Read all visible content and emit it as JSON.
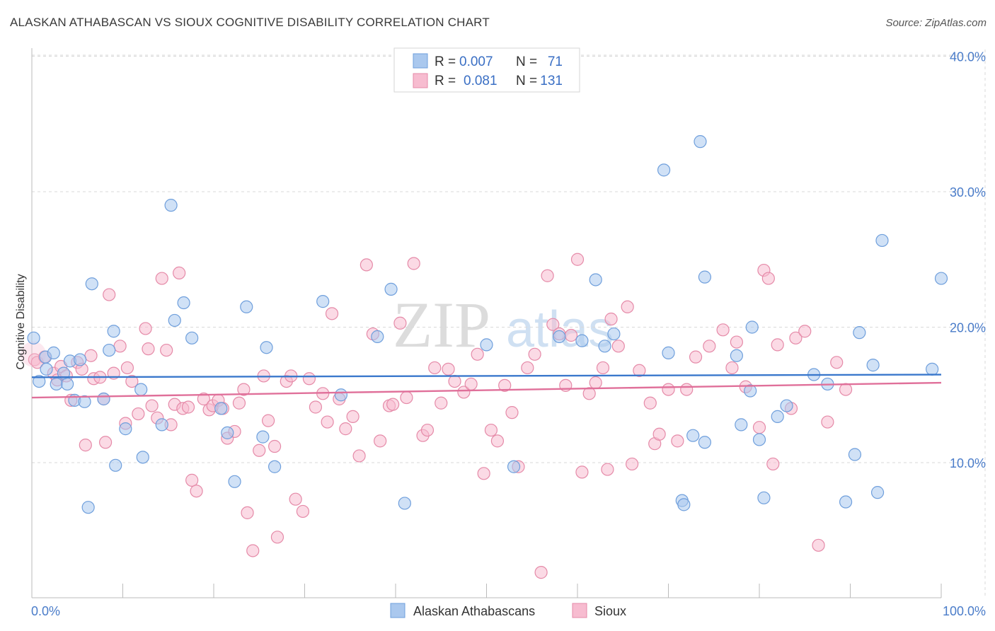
{
  "header": {
    "title": "ALASKAN ATHABASCAN VS SIOUX COGNITIVE DISABILITY CORRELATION CHART",
    "source": "Source: ZipAtlas.com"
  },
  "watermark": {
    "left": "ZIP",
    "right": "atlas"
  },
  "colors": {
    "blue_fill": "#aac8ee",
    "blue_stroke": "#6f9fdc",
    "blue_line": "#3a78cc",
    "pink_fill": "#f7bcd0",
    "pink_stroke": "#e58aa8",
    "pink_line": "#e0709a",
    "grid": "#d9d9d9",
    "axis_text": "#4a7cc9"
  },
  "legend_top": {
    "rows": [
      {
        "r_label": "R =",
        "r_value": "0.007",
        "n_label": "N =",
        "n_value": "71"
      },
      {
        "r_label": "R =",
        "r_value": "0.081",
        "n_label": "N =",
        "n_value": "131"
      }
    ]
  },
  "legend_bottom": {
    "items": [
      "Alaskan Athabascans",
      "Sioux"
    ]
  },
  "chart_data": {
    "type": "scatter",
    "title": "ALASKAN ATHABASCAN VS SIOUX COGNITIVE DISABILITY CORRELATION CHART",
    "xlabel": "",
    "ylabel": "Cognitive Disability",
    "xlim": [
      0,
      100
    ],
    "ylim": [
      0,
      42
    ],
    "x_tick_labels": [
      "0.0%",
      "100.0%"
    ],
    "y_ticks": [
      10,
      20,
      30,
      40
    ],
    "y_tick_labels": [
      "10.0%",
      "20.0%",
      "30.0%",
      "40.0%"
    ],
    "grid": true,
    "series": [
      {
        "name": "Alaskan Athabascans",
        "R": 0.007,
        "N": 71,
        "trend": {
          "y_at_0": 16.3,
          "y_at_100": 16.5
        },
        "points": [
          [
            0.2,
            19.2
          ],
          [
            0.8,
            16.0
          ],
          [
            1.5,
            17.8
          ],
          [
            1.6,
            16.9
          ],
          [
            2.4,
            18.1
          ],
          [
            2.7,
            15.8
          ],
          [
            3.5,
            16.6
          ],
          [
            3.9,
            15.8
          ],
          [
            4.2,
            17.5
          ],
          [
            4.7,
            14.6
          ],
          [
            5.3,
            17.6
          ],
          [
            5.8,
            14.5
          ],
          [
            6.2,
            6.7
          ],
          [
            6.6,
            23.2
          ],
          [
            7.9,
            14.7
          ],
          [
            8.5,
            18.3
          ],
          [
            9.0,
            19.7
          ],
          [
            9.2,
            9.8
          ],
          [
            10.3,
            12.5
          ],
          [
            12.0,
            15.4
          ],
          [
            12.2,
            10.4
          ],
          [
            14.3,
            12.8
          ],
          [
            15.3,
            29.0
          ],
          [
            15.7,
            20.5
          ],
          [
            16.7,
            21.8
          ],
          [
            17.6,
            19.2
          ],
          [
            20.8,
            14.0
          ],
          [
            21.5,
            12.2
          ],
          [
            22.3,
            8.6
          ],
          [
            23.6,
            21.5
          ],
          [
            25.4,
            11.9
          ],
          [
            25.8,
            18.5
          ],
          [
            26.7,
            9.7
          ],
          [
            32.0,
            21.9
          ],
          [
            34.0,
            15.0
          ],
          [
            38.0,
            19.3
          ],
          [
            39.5,
            22.8
          ],
          [
            41.0,
            7.0
          ],
          [
            50.0,
            18.7
          ],
          [
            53.0,
            9.7
          ],
          [
            58.0,
            19.3
          ],
          [
            60.5,
            19.0
          ],
          [
            62.0,
            23.5
          ],
          [
            63.0,
            18.6
          ],
          [
            64.0,
            19.5
          ],
          [
            69.5,
            31.6
          ],
          [
            70.0,
            18.1
          ],
          [
            71.5,
            7.2
          ],
          [
            71.7,
            6.9
          ],
          [
            72.7,
            12.0
          ],
          [
            73.5,
            33.7
          ],
          [
            74.0,
            23.7
          ],
          [
            74.0,
            11.5
          ],
          [
            77.5,
            17.9
          ],
          [
            78.0,
            12.8
          ],
          [
            79.0,
            15.3
          ],
          [
            79.2,
            20.0
          ],
          [
            80.0,
            11.7
          ],
          [
            80.5,
            7.4
          ],
          [
            82.0,
            13.4
          ],
          [
            83.0,
            14.2
          ],
          [
            86.0,
            16.5
          ],
          [
            87.5,
            15.8
          ],
          [
            89.5,
            7.1
          ],
          [
            90.5,
            10.6
          ],
          [
            91.0,
            19.6
          ],
          [
            92.5,
            17.2
          ],
          [
            93.0,
            7.8
          ],
          [
            93.5,
            26.4
          ],
          [
            99.0,
            16.9
          ],
          [
            100.0,
            23.6
          ]
        ]
      },
      {
        "name": "Sioux",
        "R": 0.081,
        "N": 131,
        "trend": {
          "y_at_0": 14.8,
          "y_at_100": 15.9
        },
        "points": [
          [
            0.3,
            17.6
          ],
          [
            0.6,
            17.4
          ],
          [
            1.4,
            17.8
          ],
          [
            2.4,
            16.6
          ],
          [
            2.8,
            16.1
          ],
          [
            3.2,
            17.1
          ],
          [
            3.8,
            16.4
          ],
          [
            4.3,
            14.6
          ],
          [
            5.0,
            17.4
          ],
          [
            5.5,
            16.9
          ],
          [
            5.9,
            11.3
          ],
          [
            6.5,
            17.9
          ],
          [
            6.8,
            16.2
          ],
          [
            7.5,
            16.3
          ],
          [
            7.9,
            14.7
          ],
          [
            8.1,
            11.5
          ],
          [
            8.5,
            22.4
          ],
          [
            9.0,
            16.6
          ],
          [
            9.7,
            18.6
          ],
          [
            10.3,
            12.9
          ],
          [
            10.5,
            17.0
          ],
          [
            11.0,
            16.0
          ],
          [
            11.7,
            13.6
          ],
          [
            12.5,
            19.9
          ],
          [
            12.8,
            18.4
          ],
          [
            13.2,
            14.2
          ],
          [
            13.8,
            13.3
          ],
          [
            14.3,
            23.6
          ],
          [
            14.8,
            18.3
          ],
          [
            15.3,
            12.8
          ],
          [
            15.7,
            14.3
          ],
          [
            16.2,
            24.0
          ],
          [
            16.6,
            14.0
          ],
          [
            17.2,
            14.1
          ],
          [
            17.6,
            8.7
          ],
          [
            18.1,
            7.9
          ],
          [
            18.9,
            14.7
          ],
          [
            19.5,
            13.9
          ],
          [
            19.9,
            14.2
          ],
          [
            20.5,
            14.6
          ],
          [
            21.0,
            14.0
          ],
          [
            21.5,
            11.8
          ],
          [
            22.3,
            12.3
          ],
          [
            22.8,
            14.4
          ],
          [
            23.3,
            15.4
          ],
          [
            23.7,
            6.3
          ],
          [
            24.3,
            3.5
          ],
          [
            25.0,
            10.9
          ],
          [
            25.5,
            16.4
          ],
          [
            26.0,
            13.1
          ],
          [
            26.7,
            11.2
          ],
          [
            27.0,
            4.5
          ],
          [
            28.0,
            16.0
          ],
          [
            28.5,
            16.4
          ],
          [
            29.0,
            7.3
          ],
          [
            29.8,
            6.4
          ],
          [
            30.5,
            16.2
          ],
          [
            31.2,
            14.1
          ],
          [
            32.0,
            15.1
          ],
          [
            32.5,
            13.0
          ],
          [
            33.0,
            21.0
          ],
          [
            33.8,
            14.7
          ],
          [
            34.5,
            12.5
          ],
          [
            35.3,
            13.4
          ],
          [
            36.0,
            10.5
          ],
          [
            36.8,
            24.6
          ],
          [
            37.5,
            19.5
          ],
          [
            38.3,
            11.6
          ],
          [
            39.3,
            14.2
          ],
          [
            39.7,
            14.3
          ],
          [
            40.5,
            20.3
          ],
          [
            41.2,
            14.8
          ],
          [
            42.0,
            24.7
          ],
          [
            43.0,
            12.0
          ],
          [
            43.5,
            12.4
          ],
          [
            44.3,
            17.0
          ],
          [
            45.0,
            14.4
          ],
          [
            45.8,
            16.9
          ],
          [
            46.5,
            16.0
          ],
          [
            47.5,
            15.2
          ],
          [
            48.3,
            15.8
          ],
          [
            49.0,
            18.0
          ],
          [
            49.7,
            9.2
          ],
          [
            50.5,
            12.4
          ],
          [
            51.2,
            11.6
          ],
          [
            52.0,
            15.7
          ],
          [
            52.8,
            13.7
          ],
          [
            53.5,
            9.7
          ],
          [
            54.5,
            17.0
          ],
          [
            55.3,
            18.0
          ],
          [
            56.0,
            1.9
          ],
          [
            56.7,
            23.8
          ],
          [
            57.3,
            20.2
          ],
          [
            58.0,
            19.5
          ],
          [
            58.7,
            15.7
          ],
          [
            59.3,
            19.4
          ],
          [
            60.0,
            25.0
          ],
          [
            60.5,
            9.3
          ],
          [
            61.3,
            15.1
          ],
          [
            62.0,
            15.9
          ],
          [
            62.8,
            17.0
          ],
          [
            63.3,
            9.5
          ],
          [
            63.7,
            20.6
          ],
          [
            64.5,
            18.6
          ],
          [
            65.5,
            21.5
          ],
          [
            66.0,
            9.9
          ],
          [
            66.8,
            16.8
          ],
          [
            68.0,
            14.4
          ],
          [
            68.5,
            11.4
          ],
          [
            69.0,
            12.1
          ],
          [
            70.0,
            15.4
          ],
          [
            71.0,
            11.6
          ],
          [
            72.0,
            15.4
          ],
          [
            73.0,
            17.8
          ],
          [
            74.5,
            18.6
          ],
          [
            76.0,
            19.8
          ],
          [
            77.0,
            17.0
          ],
          [
            77.5,
            18.9
          ],
          [
            78.5,
            15.6
          ],
          [
            80.0,
            12.6
          ],
          [
            80.5,
            24.2
          ],
          [
            81.0,
            23.6
          ],
          [
            81.5,
            9.9
          ],
          [
            82.0,
            18.7
          ],
          [
            83.5,
            14.0
          ],
          [
            84.0,
            19.2
          ],
          [
            85.0,
            19.7
          ],
          [
            86.5,
            3.9
          ],
          [
            87.5,
            13.0
          ],
          [
            88.5,
            17.4
          ],
          [
            89.5,
            15.4
          ]
        ]
      }
    ]
  }
}
